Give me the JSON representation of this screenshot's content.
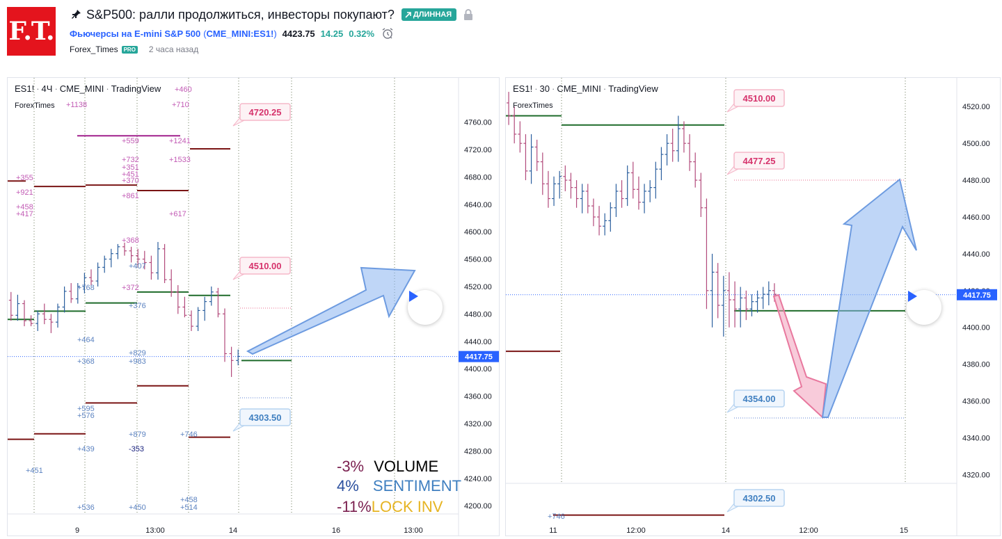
{
  "header": {
    "logo_text": "F.T.",
    "title": "S&P500: ралли продолжиться, инвесторы покупают?",
    "badge": "ДЛИННАЯ",
    "symbol_name": "Фьючерсы на E-mini S&P 500",
    "symbol_ticker": "CME_MINI:ES1!",
    "price": "4423.75",
    "change": "14.25",
    "change_pct": "0.32%",
    "author": "Forex_Times",
    "author_badge": "PRO",
    "time_ago": "2 часа назад"
  },
  "colors": {
    "up": "#2b5f9e",
    "down": "#b24a7b",
    "accent": "#2962ff",
    "long": "#26a69a",
    "pink_text": "#d6336c",
    "blue_text": "#3f7fc0",
    "green_level": "#1e6b2a",
    "red_level": "#7a1414",
    "purple_level": "#a0208c"
  },
  "icons": {
    "pin": "pin-icon",
    "lock": "lock-icon",
    "alarm": "alarm-clock-icon",
    "play": "play-icon",
    "arrow": "trend-arrow-icon"
  },
  "chart_data": [
    {
      "type": "candlestick",
      "legend": {
        "symbol": "ES1!",
        "interval": "4Ч",
        "exchange": "CME_MINI",
        "source": "TradingView",
        "sub": "ForexTimes"
      },
      "ylim": [
        4190,
        4790
      ],
      "y_ticks": [
        "4760.00",
        "4720.00",
        "4680.00",
        "4640.00",
        "4600.00",
        "4560.00",
        "4520.00",
        "4480.00",
        "4440.00",
        "4400.00",
        "4360.00",
        "4320.00",
        "4280.00",
        "4240.00",
        "4200.00"
      ],
      "x_ticks": [
        "9",
        "13:00",
        "14",
        "16",
        "13:00"
      ],
      "last_price": "4417.75",
      "level_labels": [
        {
          "text": "4720.25",
          "style": "pink"
        },
        {
          "text": "4510.00",
          "style": "pink"
        },
        {
          "text": "4303.50",
          "style": "blue"
        }
      ],
      "volume_labels": [
        {
          "text": "+1138",
          "c": "pink"
        },
        {
          "text": "+460",
          "c": "pink"
        },
        {
          "text": "+710",
          "c": "pink"
        },
        {
          "text": "+559",
          "c": "pink"
        },
        {
          "text": "+1241",
          "c": "pink"
        },
        {
          "text": "+732",
          "c": "pink"
        },
        {
          "text": "+351",
          "c": "pink"
        },
        {
          "text": "+1533",
          "c": "pink"
        },
        {
          "text": "+355",
          "c": "pink"
        },
        {
          "text": "+451",
          "c": "pink"
        },
        {
          "text": "+370",
          "c": "pink"
        },
        {
          "text": "+921",
          "c": "pink"
        },
        {
          "text": "+861",
          "c": "pink"
        },
        {
          "text": "+458",
          "c": "pink"
        },
        {
          "text": "+417",
          "c": "pink"
        },
        {
          "text": "+617",
          "c": "pink"
        },
        {
          "text": "+368",
          "c": "pink"
        },
        {
          "text": "+407",
          "c": "blue"
        },
        {
          "text": "+768",
          "c": "blue"
        },
        {
          "text": "+372",
          "c": "pink"
        },
        {
          "text": "+376",
          "c": "blue"
        },
        {
          "text": "+464",
          "c": "blue"
        },
        {
          "text": "+829",
          "c": "blue"
        },
        {
          "text": "+368",
          "c": "blue"
        },
        {
          "text": "+983",
          "c": "blue"
        },
        {
          "text": "+595",
          "c": "blue"
        },
        {
          "text": "+576",
          "c": "blue"
        },
        {
          "text": "+879",
          "c": "blue"
        },
        {
          "text": "+746",
          "c": "blue"
        },
        {
          "text": "+439",
          "c": "blue"
        },
        {
          "text": "-353",
          "c": "dark"
        },
        {
          "text": "+451",
          "c": "blue"
        },
        {
          "text": "+458",
          "c": "blue"
        },
        {
          "text": "+536",
          "c": "blue"
        },
        {
          "text": "+450",
          "c": "blue"
        },
        {
          "text": "+514",
          "c": "blue"
        }
      ],
      "stats": [
        {
          "value": "-3%",
          "label": "VOLUME",
          "value_color": "#7a1f4f",
          "label_color": "#000000"
        },
        {
          "value": "4%",
          "label": "SENTIMENT",
          "value_color": "#2a4f9e",
          "label_color": "#3f7fc0"
        },
        {
          "value": "-11%",
          "label": "LOCK INV",
          "value_color": "#7a1f4f",
          "label_color": "#e6b422"
        }
      ],
      "candles": [
        [
          4500,
          4512,
          4470,
          4478
        ],
        [
          4478,
          4508,
          4470,
          4495
        ],
        [
          4495,
          4500,
          4462,
          4470
        ],
        [
          4470,
          4478,
          4462,
          4466
        ],
        [
          4466,
          4485,
          4455,
          4480
        ],
        [
          4480,
          4495,
          4465,
          4472
        ],
        [
          4472,
          4480,
          4452,
          4468
        ],
        [
          4468,
          4495,
          4460,
          4490
        ],
        [
          4490,
          4520,
          4482,
          4513
        ],
        [
          4513,
          4525,
          4496,
          4502
        ],
        [
          4502,
          4525,
          4495,
          4520
        ],
        [
          4520,
          4540,
          4510,
          4533
        ],
        [
          4533,
          4545,
          4522,
          4528
        ],
        [
          4528,
          4555,
          4520,
          4548
        ],
        [
          4548,
          4565,
          4540,
          4560
        ],
        [
          4560,
          4575,
          4548,
          4568
        ],
        [
          4568,
          4582,
          4560,
          4578
        ],
        [
          4578,
          4584,
          4565,
          4572
        ],
        [
          4572,
          4578,
          4555,
          4565
        ],
        [
          4565,
          4575,
          4548,
          4560
        ],
        [
          4560,
          4572,
          4545,
          4555
        ],
        [
          4555,
          4565,
          4530,
          4540
        ],
        [
          4540,
          4585,
          4530,
          4575
        ],
        [
          4575,
          4582,
          4525,
          4530
        ],
        [
          4530,
          4545,
          4505,
          4512
        ],
        [
          4512,
          4522,
          4480,
          4490
        ],
        [
          4490,
          4505,
          4475,
          4478
        ],
        [
          4478,
          4485,
          4455,
          4462
        ],
        [
          4462,
          4490,
          4455,
          4485
        ],
        [
          4485,
          4505,
          4470,
          4498
        ],
        [
          4498,
          4520,
          4492,
          4512
        ],
        [
          4512,
          4518,
          4475,
          4480
        ],
        [
          4480,
          4488,
          4410,
          4422
        ],
        [
          4422,
          4432,
          4388,
          4412
        ],
        [
          4412,
          4428,
          4405,
          4418
        ]
      ]
    },
    {
      "type": "candlestick",
      "legend": {
        "symbol": "ES1!",
        "interval": "30",
        "exchange": "CME_MINI",
        "source": "TradingView",
        "sub": "ForexTimes"
      },
      "ylim": [
        4316,
        4525
      ],
      "y_ticks": [
        "4520.00",
        "4500.00",
        "4480.00",
        "4460.00",
        "4440.00",
        "4420.00",
        "4400.00",
        "4380.00",
        "4360.00",
        "4340.00",
        "4320.00"
      ],
      "x_ticks": [
        "11",
        "12:00",
        "14",
        "12:00",
        "15"
      ],
      "last_price": "4417.75",
      "level_labels": [
        {
          "text": "4510.00",
          "style": "pink"
        },
        {
          "text": "4477.25",
          "style": "pink"
        },
        {
          "text": "4354.00",
          "style": "blue"
        },
        {
          "text": "4302.50",
          "style": "blue"
        }
      ],
      "volume_labels": [
        {
          "text": "+746",
          "c": "blue"
        }
      ],
      "candles": [
        [
          4522,
          4528,
          4510,
          4515
        ],
        [
          4515,
          4520,
          4500,
          4505
        ],
        [
          4505,
          4512,
          4495,
          4500
        ],
        [
          4500,
          4505,
          4480,
          4485
        ],
        [
          4485,
          4505,
          4478,
          4498
        ],
        [
          4498,
          4502,
          4485,
          4490
        ],
        [
          4490,
          4495,
          4472,
          4478
        ],
        [
          4478,
          4485,
          4465,
          4470
        ],
        [
          4470,
          4482,
          4466,
          4478
        ],
        [
          4478,
          4485,
          4470,
          4482
        ],
        [
          4482,
          4488,
          4474,
          4480
        ],
        [
          4480,
          4484,
          4470,
          4476
        ],
        [
          4476,
          4480,
          4465,
          4470
        ],
        [
          4470,
          4478,
          4462,
          4474
        ],
        [
          4474,
          4478,
          4462,
          4466
        ],
        [
          4466,
          4470,
          4455,
          4460
        ],
        [
          4460,
          4466,
          4450,
          4455
        ],
        [
          4455,
          4462,
          4450,
          4458
        ],
        [
          4458,
          4468,
          4452,
          4465
        ],
        [
          4465,
          4478,
          4460,
          4474
        ],
        [
          4474,
          4480,
          4465,
          4470
        ],
        [
          4470,
          4488,
          4466,
          4484
        ],
        [
          4484,
          4490,
          4470,
          4475
        ],
        [
          4475,
          4482,
          4464,
          4468
        ],
        [
          4468,
          4478,
          4462,
          4474
        ],
        [
          4474,
          4480,
          4468,
          4476
        ],
        [
          4476,
          4490,
          4470,
          4486
        ],
        [
          4486,
          4498,
          4480,
          4494
        ],
        [
          4494,
          4505,
          4488,
          4500
        ],
        [
          4500,
          4508,
          4490,
          4496
        ],
        [
          4496,
          4515,
          4490,
          4508
        ],
        [
          4508,
          4512,
          4495,
          4500
        ],
        [
          4500,
          4505,
          4485,
          4490
        ],
        [
          4490,
          4495,
          4476,
          4480
        ],
        [
          4480,
          4484,
          4460,
          4465
        ],
        [
          4465,
          4470,
          4410,
          4420
        ],
        [
          4420,
          4440,
          4400,
          4430
        ],
        [
          4430,
          4435,
          4405,
          4412
        ],
        [
          4412,
          4428,
          4395,
          4420
        ],
        [
          4420,
          4430,
          4400,
          4415
        ],
        [
          4415,
          4425,
          4400,
          4410
        ],
        [
          4410,
          4422,
          4400,
          4416
        ],
        [
          4416,
          4420,
          4404,
          4410
        ],
        [
          4410,
          4418,
          4406,
          4414
        ],
        [
          4414,
          4420,
          4408,
          4416
        ],
        [
          4416,
          4422,
          4410,
          4418
        ],
        [
          4418,
          4425,
          4412,
          4420
        ],
        [
          4420,
          4424,
          4414,
          4418
        ]
      ]
    }
  ]
}
